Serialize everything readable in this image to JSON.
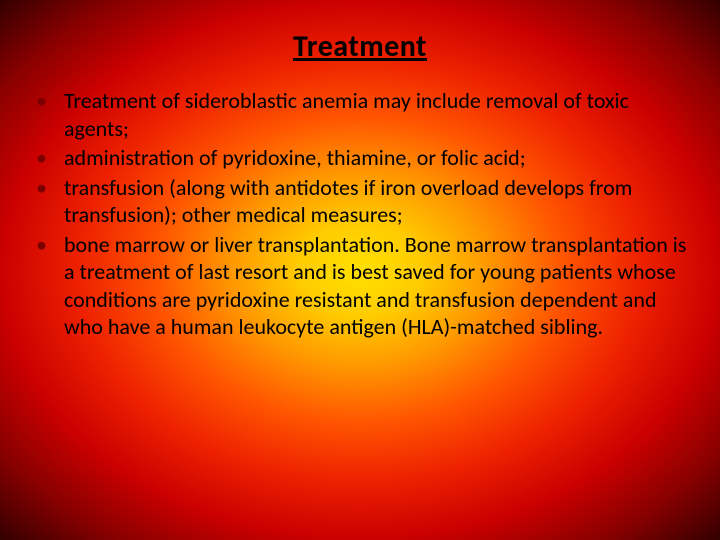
{
  "title": "Treatment",
  "bullets": [
    "Treatment of sideroblastic anemia may include removal of toxic agents;",
    "administration of pyridoxine, thiamine, or folic acid;",
    "transfusion (along with antidotes if iron overload develops from transfusion); other medical measures;",
    "bone marrow or liver transplantation. Bone marrow transplantation is a treatment of last resort and is best saved for young patients whose conditions are pyridoxine resistant and transfusion dependent and who have a human leukocyte antigen (HLA)-matched sibling."
  ],
  "style": {
    "background_gradient_stops": [
      "#ffe000",
      "#ffcc00",
      "#ff9900",
      "#ff5500",
      "#ee2200",
      "#cc0000",
      "#880000",
      "#330000"
    ],
    "title_fontsize": 30,
    "title_weight": 700,
    "title_underline": true,
    "bullet_fontsize": 22,
    "bullet_marker_color": "#7a0000",
    "text_color": "#000000",
    "font_family": "Calibri"
  }
}
